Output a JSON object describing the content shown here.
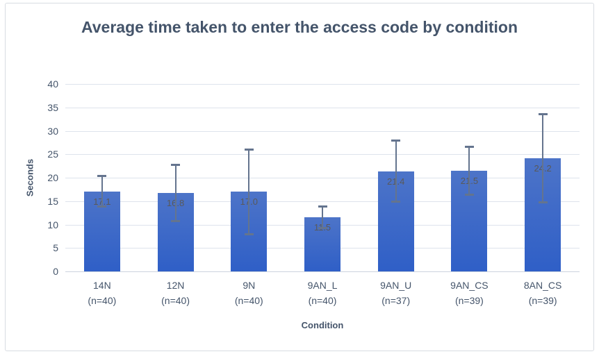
{
  "chart_data": {
    "type": "bar",
    "title": "Average time taken to enter the access code by condition",
    "xlabel": "Condition",
    "ylabel": "Seconds",
    "categories": [
      "14N",
      "12N",
      "9N",
      "9AN_L",
      "9AN_U",
      "9AN_CS",
      "8AN_CS"
    ],
    "sublabels": [
      "(n=40)",
      "(n=40)",
      "(n=40)",
      "(n=40)",
      "(n=37)",
      "(n=39)",
      "(n=39)"
    ],
    "values": [
      17.1,
      16.8,
      17.0,
      11.5,
      21.4,
      21.5,
      24.2
    ],
    "errors": [
      3.3,
      6.0,
      9.0,
      2.3,
      6.5,
      5.1,
      9.4
    ],
    "ylim": [
      0,
      40
    ],
    "ytick_step": 5,
    "grid": true,
    "legend": "none",
    "colors": {
      "bar_gradient_top": "#4d74c8",
      "bar_gradient_bottom": "#2f5fc7",
      "error_bar": "#64748e",
      "gridline": "#dde3ec",
      "axis_line": "#ccd3de",
      "axis_text": "#44546a",
      "title_text": "#44546a",
      "data_label_text": "#595959",
      "frame_border": "#d8dce2"
    }
  }
}
